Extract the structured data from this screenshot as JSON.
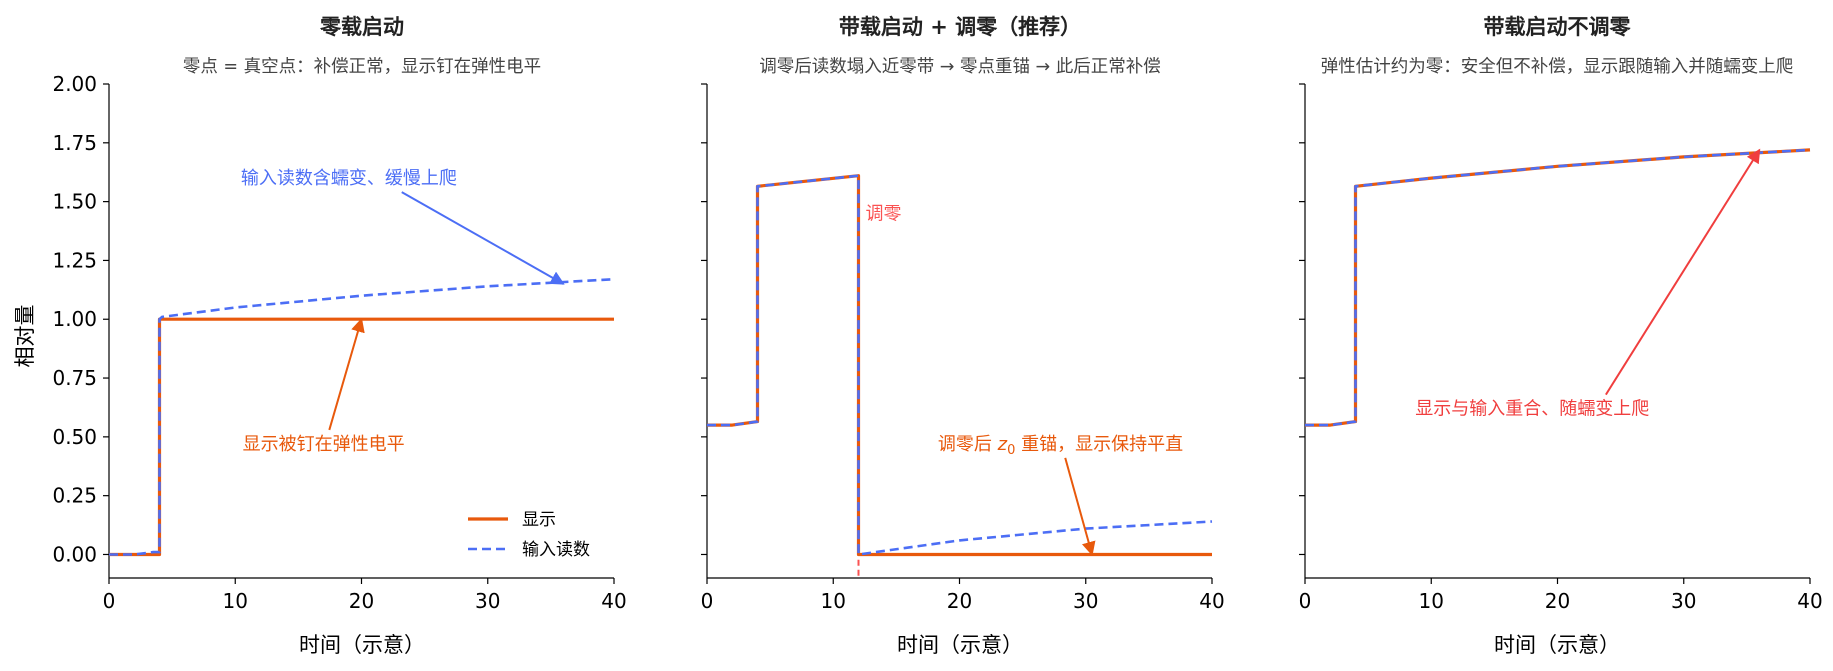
{
  "colors": {
    "display": "#E8590C",
    "input": "#4C6EF5",
    "zero_marker": "#FA5252",
    "red_annot": "#F03E3E",
    "axis": "#000000"
  },
  "figure": {
    "ylabel": "相对量",
    "legend": {
      "display_label": "显示",
      "input_label": "输入读数",
      "placement": "lower-right of first panel"
    }
  },
  "chart_data": [
    {
      "type": "line",
      "title": "零载启动",
      "subtitle": "零点 = 真空点：补偿正常，显示钉在弹性电平",
      "xlabel": "时间（示意）",
      "ylabel": "相对量",
      "xlim": [
        0,
        40
      ],
      "ylim": [
        -0.1,
        2.0
      ],
      "xticks": [
        "0",
        "10",
        "20",
        "30",
        "40"
      ],
      "yticks": [
        "0.00",
        "0.25",
        "0.50",
        "0.75",
        "1.00",
        "1.25",
        "1.50",
        "1.75",
        "2.00"
      ],
      "series": [
        {
          "name": "显示",
          "style": "solid",
          "points": [
            [
              0,
              0
            ],
            [
              2,
              0
            ],
            [
              4,
              0
            ],
            [
              4,
              1.0
            ],
            [
              40,
              1.0
            ]
          ]
        },
        {
          "name": "输入读数",
          "style": "dashed",
          "points": [
            [
              0,
              0
            ],
            [
              2,
              0
            ],
            [
              3.5,
              0.01
            ],
            [
              4,
              0.01
            ],
            [
              4,
              1.0
            ],
            [
              4.2,
              1.01
            ],
            [
              10,
              1.05
            ],
            [
              20,
              1.1
            ],
            [
              30,
              1.14
            ],
            [
              40,
              1.17
            ]
          ]
        }
      ],
      "annotations": [
        {
          "text": "输入读数含蠕变、缓慢上爬",
          "color": "input",
          "text_at": [
            19,
            1.6
          ],
          "arrow_to": [
            36,
            1.15
          ]
        },
        {
          "text": "显示被钉在弹性电平",
          "color": "display",
          "text_at": [
            17,
            0.47
          ],
          "arrow_to": [
            20,
            1.0
          ]
        }
      ],
      "show_legend": true
    },
    {
      "type": "line",
      "title": "带载启动 + 调零（推荐）",
      "subtitle": "调零后读数塌入近零带 → 零点重锚 → 此后正常补偿",
      "xlabel": "时间（示意）",
      "xlim": [
        0,
        40
      ],
      "ylim": [
        -0.1,
        2.0
      ],
      "xticks": [
        "0",
        "10",
        "20",
        "30",
        "40"
      ],
      "series": [
        {
          "name": "显示",
          "style": "solid",
          "points": [
            [
              0,
              0.55
            ],
            [
              2,
              0.55
            ],
            [
              4,
              0.565
            ],
            [
              4,
              1.565
            ],
            [
              12,
              1.61
            ],
            [
              12,
              0
            ],
            [
              40,
              0
            ]
          ]
        },
        {
          "name": "输入读数",
          "style": "dashed",
          "points": [
            [
              0,
              0.55
            ],
            [
              2,
              0.55
            ],
            [
              4,
              0.565
            ],
            [
              4,
              1.565
            ],
            [
              12,
              1.61
            ],
            [
              12,
              0
            ],
            [
              20,
              0.06
            ],
            [
              30,
              0.11
            ],
            [
              40,
              0.14
            ]
          ]
        }
      ],
      "zero_event": {
        "x": 12,
        "label": "调零"
      },
      "annotations": [
        {
          "text_prefix": "调零后 ",
          "text_var": "z",
          "text_sub": "0",
          "text_suffix": " 重锚，显示保持平直",
          "color": "display",
          "text_at": [
            28,
            0.47
          ],
          "arrow_to": [
            30.5,
            0.0
          ]
        }
      ]
    },
    {
      "type": "line",
      "title": "带载启动不调零",
      "subtitle": "弹性估计约为零：安全但不补偿，显示跟随输入并随蠕变上爬",
      "xlabel": "时间（示意）",
      "xlim": [
        0,
        40
      ],
      "ylim": [
        -0.1,
        2.0
      ],
      "xticks": [
        "0",
        "10",
        "20",
        "30",
        "40"
      ],
      "series": [
        {
          "name": "显示",
          "style": "solid",
          "points": [
            [
              0,
              0.55
            ],
            [
              2,
              0.55
            ],
            [
              4,
              0.565
            ],
            [
              4,
              1.565
            ],
            [
              10,
              1.6
            ],
            [
              20,
              1.65
            ],
            [
              30,
              1.69
            ],
            [
              40,
              1.72
            ]
          ]
        },
        {
          "name": "输入读数",
          "style": "dashed",
          "points": [
            [
              0,
              0.55
            ],
            [
              2,
              0.55
            ],
            [
              4,
              0.565
            ],
            [
              4,
              1.565
            ],
            [
              10,
              1.6
            ],
            [
              20,
              1.65
            ],
            [
              30,
              1.69
            ],
            [
              40,
              1.72
            ]
          ]
        }
      ],
      "annotations": [
        {
          "text": "显示与输入重合、随蠕变上爬",
          "color": "red_annot",
          "text_at": [
            18,
            0.62
          ],
          "arrow_to": [
            36,
            1.72
          ]
        }
      ]
    }
  ]
}
